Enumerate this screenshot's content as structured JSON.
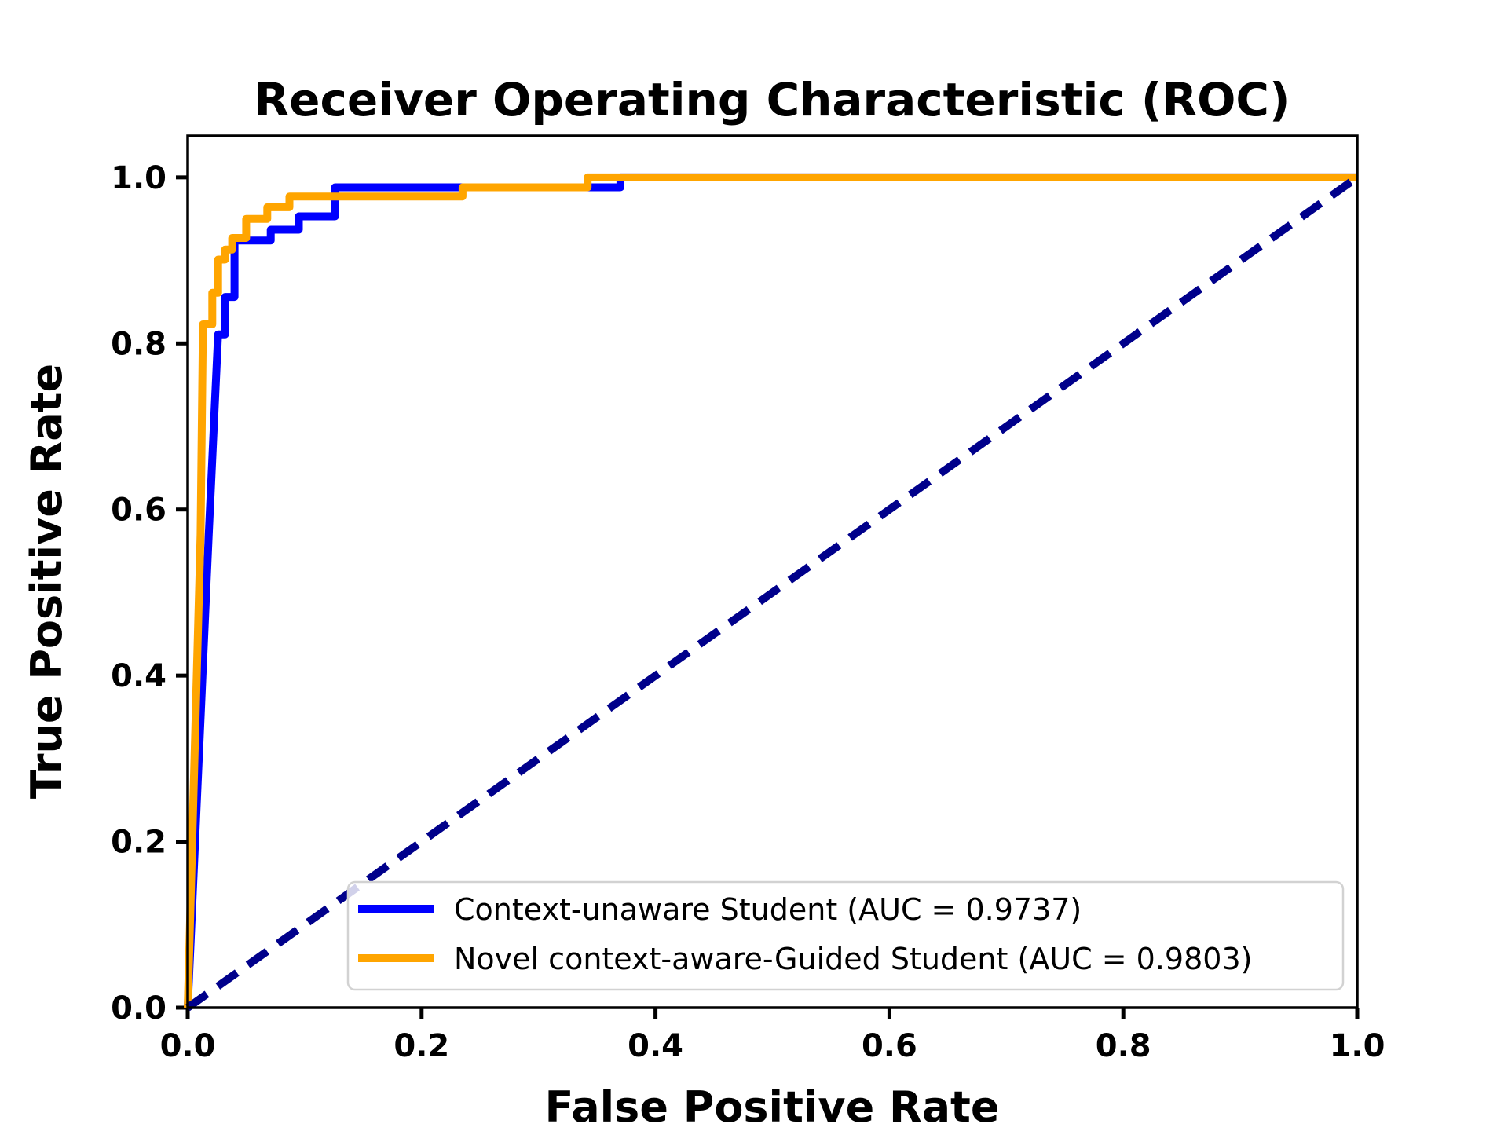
{
  "chart_data": {
    "type": "line",
    "title": "Receiver Operating Characteristic (ROC)",
    "xlabel": "False Positive Rate",
    "ylabel": "True Positive Rate",
    "xlim": [
      0.0,
      1.0
    ],
    "ylim": [
      0.0,
      1.05
    ],
    "x_ticks": [
      0.0,
      0.2,
      0.4,
      0.6,
      0.8,
      1.0
    ],
    "y_ticks": [
      0.0,
      0.2,
      0.4,
      0.6,
      0.8,
      1.0
    ],
    "grid": false,
    "legend_position": "lower right",
    "series": [
      {
        "name": "Context-unaware Student (AUC = 0.9737)",
        "auc": 0.9737,
        "color": "#0000ff",
        "style": "solid",
        "in_legend": true,
        "points": [
          [
            0.0,
            0.0
          ],
          [
            0.018,
            0.57
          ],
          [
            0.026,
            0.811
          ],
          [
            0.032,
            0.811
          ],
          [
            0.032,
            0.856
          ],
          [
            0.04,
            0.856
          ],
          [
            0.04,
            0.924
          ],
          [
            0.071,
            0.924
          ],
          [
            0.071,
            0.937
          ],
          [
            0.095,
            0.937
          ],
          [
            0.095,
            0.953
          ],
          [
            0.126,
            0.953
          ],
          [
            0.126,
            0.988
          ],
          [
            0.37,
            0.988
          ],
          [
            0.37,
            1.0
          ],
          [
            1.0,
            1.0
          ]
        ]
      },
      {
        "name": "Novel context-aware-Guided Student (AUC = 0.9803)",
        "auc": 0.9803,
        "color": "#ffa500",
        "style": "solid",
        "in_legend": true,
        "points": [
          [
            0.0,
            0.0
          ],
          [
            0.011,
            0.57
          ],
          [
            0.013,
            0.823
          ],
          [
            0.021,
            0.823
          ],
          [
            0.021,
            0.861
          ],
          [
            0.026,
            0.861
          ],
          [
            0.026,
            0.901
          ],
          [
            0.032,
            0.901
          ],
          [
            0.032,
            0.913
          ],
          [
            0.038,
            0.913
          ],
          [
            0.038,
            0.927
          ],
          [
            0.05,
            0.927
          ],
          [
            0.05,
            0.95
          ],
          [
            0.068,
            0.95
          ],
          [
            0.068,
            0.964
          ],
          [
            0.087,
            0.964
          ],
          [
            0.087,
            0.977
          ],
          [
            0.235,
            0.977
          ],
          [
            0.235,
            0.988
          ],
          [
            0.342,
            0.988
          ],
          [
            0.342,
            1.0
          ],
          [
            1.0,
            1.0
          ]
        ]
      },
      {
        "name": "chance-diagonal",
        "color": "#00008b",
        "style": "dashed",
        "in_legend": false,
        "points": [
          [
            0.0,
            0.0
          ],
          [
            1.0,
            1.0
          ]
        ]
      }
    ]
  }
}
